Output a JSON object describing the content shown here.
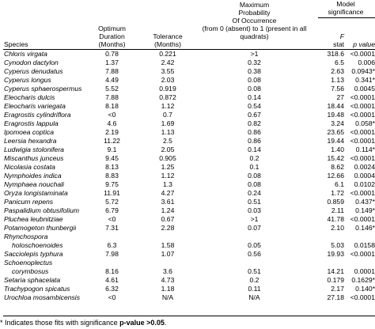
{
  "headers": {
    "species": "Species",
    "duration": [
      "Optimum",
      "Duration",
      "(Months)"
    ],
    "tolerance": [
      "Tolerance",
      "(Months)"
    ],
    "probability": [
      "Maximum",
      "Probability",
      "Of Occurrence",
      "(from 0 (absent) to 1 (present in all",
      "quadrats)"
    ],
    "model": [
      "Model",
      "significance"
    ],
    "f": [
      "F",
      "stat"
    ],
    "pvalue": "p value"
  },
  "rows": [
    {
      "species": "Chloris virgata",
      "duration": "0.78",
      "tolerance": "0.221",
      "prob": ">1",
      "f": "318.6",
      "p": "<0.0001"
    },
    {
      "species": "Cynodon dactylon",
      "duration": "1.37",
      "tolerance": "2.42",
      "prob": "0.32",
      "f": "6.5",
      "p": "0.006"
    },
    {
      "species": "Cyperus denudatus",
      "duration": "7.88",
      "tolerance": "3.55",
      "prob": "0.38",
      "f": "2.63",
      "p": "0.0943*"
    },
    {
      "species": "Cyperus longus",
      "duration": "4.49",
      "tolerance": "2.03",
      "prob": "0.08",
      "f": "1.13",
      "p": "0.341*"
    },
    {
      "species": "Cyperus sphaerospermus",
      "duration": "5.52",
      "tolerance": "0.919",
      "prob": "0.08",
      "f": "7.56",
      "p": "0.0045"
    },
    {
      "species": "Eleocharis dulcis",
      "duration": "7.88",
      "tolerance": "0.872",
      "prob": "0.14",
      "f": "27",
      "p": "<0.0001"
    },
    {
      "species": "Eleocharis variegata",
      "duration": "8.18",
      "tolerance": "1.12",
      "prob": "0.54",
      "f": "18.44",
      "p": "<0.0001"
    },
    {
      "species": "Eragrostis cylindriflora",
      "duration": "<0",
      "tolerance": "0.7",
      "prob": "0.67",
      "f": "19.48",
      "p": "<0.0001"
    },
    {
      "species": "Eragrostis lappula",
      "duration": "4.6",
      "tolerance": "1.69",
      "prob": "0.82",
      "f": "3.24",
      "p": "0.058*"
    },
    {
      "species": "Ipomoea coptica",
      "duration": "2.19",
      "tolerance": "1.13",
      "prob": "0.86",
      "f": "23.65",
      "p": "<0.0001"
    },
    {
      "species": "Leersia hexandra",
      "duration": "11.22",
      "tolerance": "2.5",
      "prob": "0.86",
      "f": "19.44",
      "p": "<0.0001"
    },
    {
      "species": "Ludwigia stolonifera",
      "duration": "9.1",
      "tolerance": "2.05",
      "prob": "0.14",
      "f": "1.40",
      "p": "0.114*"
    },
    {
      "species": "Miscanthus junceus",
      "duration": "9.45",
      "tolerance": "0.905",
      "prob": "0.2",
      "f": "15.42",
      "p": "<0.0001"
    },
    {
      "species": "Nicolasia costata",
      "duration": "8.13",
      "tolerance": "1.25",
      "prob": "0.1",
      "f": "8.62",
      "p": "0.0024"
    },
    {
      "species": "Nymphoides indica",
      "duration": "8.83",
      "tolerance": "1.12",
      "prob": "0.08",
      "f": "12.66",
      "p": "0.0004"
    },
    {
      "species": "Nymphaea nouchali",
      "duration": "9.75",
      "tolerance": "1.3",
      "prob": "0.08",
      "f": "6.1",
      "p": "0.0102"
    },
    {
      "species": "Oryza longistaminata",
      "duration": "11.91",
      "tolerance": "4.27",
      "prob": "0.24",
      "f": "1.72",
      "p": "<0.0001"
    },
    {
      "species": "Panicum repens",
      "duration": "5.72",
      "tolerance": "3.61",
      "prob": "0.51",
      "f": "0.859",
      "p": "0.437*"
    },
    {
      "species": "Paspalidium obtusifolium",
      "duration": "6.79",
      "tolerance": "1.24",
      "prob": "0.03",
      "f": "2.11",
      "p": "0.149*"
    },
    {
      "species": "Pluchea leubnitziae",
      "duration": "<0",
      "tolerance": "0.67",
      "prob": ">1",
      "f": "41.78",
      "p": "<0.0001"
    },
    {
      "species": "Potamogeton thunbergii",
      "duration": "7.31",
      "tolerance": "2.28",
      "prob": "0.07",
      "f": "2.10",
      "p": "0.146*"
    },
    {
      "species": [
        "Rhynchospora",
        "holoschoenoides"
      ],
      "duration": "6.3",
      "tolerance": "1.58",
      "prob": "0.05",
      "f": "5.03",
      "p": "0.0158"
    },
    {
      "species": "Sacciolepis typhura",
      "duration": "7.98",
      "tolerance": "1.07",
      "prob": "0.56",
      "f": "19.93",
      "p": "<0.0001"
    },
    {
      "species": [
        "Schoenoplectus",
        "corymbosus"
      ],
      "duration": "8.16",
      "tolerance": "3.6",
      "prob": "0.51",
      "f": "14.21",
      "p": "0.0001"
    },
    {
      "species": "Setaria sphacelata",
      "duration": "4.61",
      "tolerance": "4.73",
      "prob": "0.2",
      "f": "0.179",
      "p": "0.1629*"
    },
    {
      "species": "Trachypogon spicatus",
      "duration": "6.32",
      "tolerance": "1.18",
      "prob": "0.11",
      "f": "2.17",
      "p": "0.140*"
    },
    {
      "species": "Urochloa mosambicensis",
      "duration": "<0",
      "tolerance": "N/A",
      "prob": "N/A",
      "f": "27.18",
      "p": "<0.0001"
    }
  ],
  "footnote": {
    "pre": "* Indicates those fits with significance ",
    "bold": "p-value >0.05",
    "post": "."
  }
}
